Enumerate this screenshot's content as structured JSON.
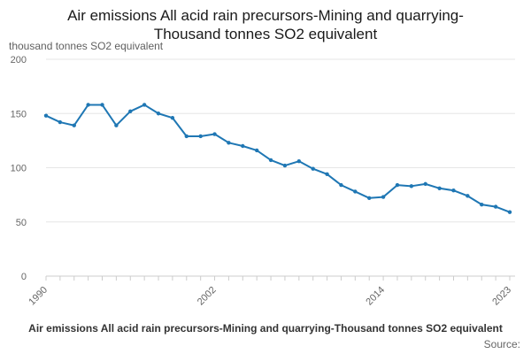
{
  "title_line1": "Air emissions All acid rain precursors-Mining and quarrying-",
  "title_line2": "Thousand tonnes SO2 equivalent",
  "caption": "Air emissions All acid rain precursors-Mining and quarrying-Thousand tonnes SO2 equivalent",
  "source_label": "Source:",
  "chart_data": {
    "type": "line",
    "title": "Air emissions All acid rain precursors-Mining and quarrying-Thousand tonnes SO2 equivalent",
    "ylabel": "thousand tonnes SO2 equivalent",
    "xlabel": "",
    "ylim": [
      0,
      200
    ],
    "yticks": [
      0,
      50,
      100,
      150,
      200
    ],
    "xtick_labels": [
      "1990",
      "2002",
      "2014",
      "2023"
    ],
    "grid": true,
    "line_color": "#1f77b4",
    "x": [
      1990,
      1991,
      1992,
      1993,
      1994,
      1995,
      1996,
      1997,
      1998,
      1999,
      2000,
      2001,
      2002,
      2003,
      2004,
      2005,
      2006,
      2007,
      2008,
      2009,
      2010,
      2011,
      2012,
      2013,
      2014,
      2015,
      2016,
      2017,
      2018,
      2019,
      2020,
      2021,
      2022,
      2023
    ],
    "series": [
      {
        "values": [
          148,
          142,
          139,
          158,
          158,
          139,
          152,
          158,
          150,
          146,
          129,
          129,
          131,
          123,
          120,
          116,
          107,
          102,
          106,
          99,
          94,
          84,
          78,
          72,
          73,
          84,
          83,
          85,
          81,
          79,
          74,
          66,
          64,
          59
        ]
      }
    ]
  }
}
